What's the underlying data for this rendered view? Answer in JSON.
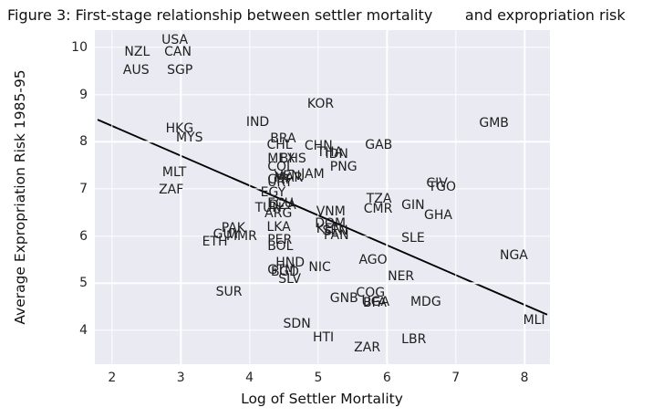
{
  "figure": {
    "title": "Figure 3: First-stage relationship between settler mortality       and expropriation risk"
  },
  "chart_data": {
    "type": "scatter",
    "marker_style": "country-code-text-labels",
    "title": "Figure 3: First-stage relationship between settler mortality and expropriation risk",
    "xlabel": "Log of Settler Mortality",
    "ylabel": "Average Expropriation Risk 1985-95",
    "xlim": [
      1.75,
      8.37
    ],
    "ylim": [
      3.28,
      10.37
    ],
    "xticks": [
      2,
      3,
      4,
      5,
      6,
      7,
      8
    ],
    "yticks": [
      4,
      5,
      6,
      7,
      8,
      9,
      10
    ],
    "grid": true,
    "legend": "none",
    "colors": {
      "plot_background": "#eaeaf2",
      "grid": "#ffffff",
      "text": "#1f1f1f",
      "trend_line": "#000000"
    },
    "trend_line": {
      "x1": 1.79,
      "y1": 8.47,
      "x2": 8.33,
      "y2": 4.33
    },
    "points": [
      {
        "label": "USA",
        "x": 2.72,
        "y": 10.02
      },
      {
        "label": "NZL",
        "x": 2.18,
        "y": 9.76
      },
      {
        "label": "CAN",
        "x": 2.76,
        "y": 9.76
      },
      {
        "label": "AUS",
        "x": 2.16,
        "y": 9.38
      },
      {
        "label": "SGP",
        "x": 2.8,
        "y": 9.38
      },
      {
        "label": "KOR",
        "x": 4.84,
        "y": 8.66
      },
      {
        "label": "IND",
        "x": 3.95,
        "y": 8.28
      },
      {
        "label": "HKG",
        "x": 2.78,
        "y": 8.14
      },
      {
        "label": "MYS",
        "x": 2.93,
        "y": 7.95
      },
      {
        "label": "GMB",
        "x": 7.34,
        "y": 8.26
      },
      {
        "label": "BRA",
        "x": 4.3,
        "y": 7.93
      },
      {
        "label": "CHL",
        "x": 4.25,
        "y": 7.8
      },
      {
        "label": "CHN",
        "x": 4.8,
        "y": 7.78
      },
      {
        "label": "THA",
        "x": 4.98,
        "y": 7.64
      },
      {
        "label": "IDN",
        "x": 5.1,
        "y": 7.6
      },
      {
        "label": "GAB",
        "x": 5.68,
        "y": 7.8
      },
      {
        "label": "MEX",
        "x": 4.26,
        "y": 7.5
      },
      {
        "label": "BHS",
        "x": 4.44,
        "y": 7.5
      },
      {
        "label": "COL",
        "x": 4.26,
        "y": 7.32
      },
      {
        "label": "PNG",
        "x": 5.17,
        "y": 7.33
      },
      {
        "label": "CRI",
        "x": 4.26,
        "y": 7.05
      },
      {
        "label": "URY",
        "x": 4.26,
        "y": 7.0
      },
      {
        "label": "VEN",
        "x": 4.36,
        "y": 7.14
      },
      {
        "label": "MAR",
        "x": 4.36,
        "y": 7.09
      },
      {
        "label": "JAM",
        "x": 4.75,
        "y": 7.18
      },
      {
        "label": "MLT",
        "x": 2.73,
        "y": 7.21
      },
      {
        "label": "ZAF",
        "x": 2.68,
        "y": 6.85
      },
      {
        "label": "EGY",
        "x": 4.16,
        "y": 6.78
      },
      {
        "label": "ECU",
        "x": 4.26,
        "y": 6.55
      },
      {
        "label": "CIV",
        "x": 6.57,
        "y": 6.98
      },
      {
        "label": "TGO",
        "x": 6.6,
        "y": 6.9
      },
      {
        "label": "TZA",
        "x": 5.7,
        "y": 6.65
      },
      {
        "label": "CMR",
        "x": 5.66,
        "y": 6.43
      },
      {
        "label": "GIN",
        "x": 6.21,
        "y": 6.52
      },
      {
        "label": "GHA",
        "x": 6.54,
        "y": 6.3
      },
      {
        "label": "TUN",
        "x": 4.08,
        "y": 6.46
      },
      {
        "label": "DZA",
        "x": 4.28,
        "y": 6.52
      },
      {
        "label": "ARG",
        "x": 4.22,
        "y": 6.35
      },
      {
        "label": "VNM",
        "x": 4.97,
        "y": 6.38
      },
      {
        "label": "DOM",
        "x": 4.95,
        "y": 6.13
      },
      {
        "label": "KEN",
        "x": 4.97,
        "y": 6.02
      },
      {
        "label": "SEN",
        "x": 5.06,
        "y": 5.98
      },
      {
        "label": "PAN",
        "x": 5.08,
        "y": 5.88
      },
      {
        "label": "LKA",
        "x": 4.25,
        "y": 6.05
      },
      {
        "label": "PAK",
        "x": 3.59,
        "y": 6.03
      },
      {
        "label": "GUY",
        "x": 3.47,
        "y": 5.9
      },
      {
        "label": "MMR",
        "x": 3.66,
        "y": 5.86
      },
      {
        "label": "ETH",
        "x": 3.31,
        "y": 5.74
      },
      {
        "label": "SLE",
        "x": 6.21,
        "y": 5.82
      },
      {
        "label": "NGA",
        "x": 7.64,
        "y": 5.45
      },
      {
        "label": "PER",
        "x": 4.26,
        "y": 5.77
      },
      {
        "label": "BOL",
        "x": 4.26,
        "y": 5.65
      },
      {
        "label": "HND",
        "x": 4.38,
        "y": 5.3
      },
      {
        "label": "GTM",
        "x": 4.26,
        "y": 5.14
      },
      {
        "label": "BGD",
        "x": 4.31,
        "y": 5.11
      },
      {
        "label": "SLV",
        "x": 4.42,
        "y": 4.95
      },
      {
        "label": "NIC",
        "x": 4.86,
        "y": 5.2
      },
      {
        "label": "AGO",
        "x": 5.59,
        "y": 5.36
      },
      {
        "label": "NER",
        "x": 6.01,
        "y": 5.01
      },
      {
        "label": "SUR",
        "x": 3.51,
        "y": 4.68
      },
      {
        "label": "COG",
        "x": 5.55,
        "y": 4.66
      },
      {
        "label": "GNB",
        "x": 5.17,
        "y": 4.53
      },
      {
        "label": "UGA",
        "x": 5.63,
        "y": 4.47
      },
      {
        "label": "BFA",
        "x": 5.65,
        "y": 4.44
      },
      {
        "label": "MDG",
        "x": 6.34,
        "y": 4.47
      },
      {
        "label": "SDN",
        "x": 4.49,
        "y": 4.0
      },
      {
        "label": "HTI",
        "x": 4.92,
        "y": 3.71
      },
      {
        "label": "ZAR",
        "x": 5.52,
        "y": 3.5
      },
      {
        "label": "LBR",
        "x": 6.21,
        "y": 3.66
      },
      {
        "label": "MLI",
        "x": 7.98,
        "y": 4.08
      }
    ]
  }
}
